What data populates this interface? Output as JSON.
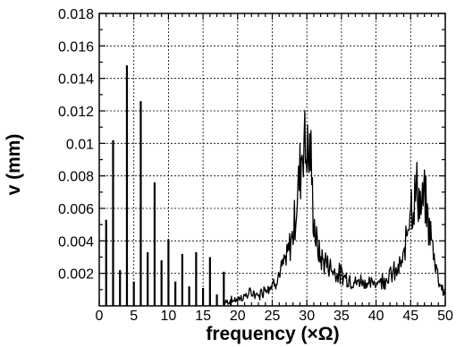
{
  "chart_data": {
    "type": "line",
    "title": "",
    "xlabel": "frequency (×Ω)",
    "ylabel": "v (mm)",
    "xlim": [
      0,
      50
    ],
    "ylim": [
      0,
      0.018
    ],
    "grid": true,
    "x_ticks": [
      0,
      5,
      10,
      15,
      20,
      25,
      30,
      35,
      40,
      45,
      50
    ],
    "x_tick_labels": [
      "0",
      "5",
      "10",
      "15",
      "20",
      "25",
      "30",
      "35",
      "40",
      "45",
      "50"
    ],
    "y_ticks": [
      0.002,
      0.004,
      0.006,
      0.008,
      0.01,
      0.012,
      0.014,
      0.016,
      0.018
    ],
    "y_tick_labels": [
      "0.002",
      "0.004",
      "0.006",
      "0.008",
      "0.01",
      "0.012",
      "0.014",
      "0.016",
      "0.018"
    ],
    "harmonics": {
      "x": [
        1,
        2,
        3,
        4,
        5,
        6,
        7,
        8,
        9,
        10,
        11,
        12,
        13,
        14,
        15,
        16,
        17,
        18,
        19
      ],
      "y": [
        0.0053,
        0.0102,
        0.0022,
        0.0148,
        0.0015,
        0.0126,
        0.0033,
        0.0076,
        0.0028,
        0.0041,
        0.0015,
        0.0032,
        0.0012,
        0.0033,
        0.0011,
        0.003,
        0.0007,
        0.0021,
        0.0004
      ]
    },
    "spectrum": {
      "x": [
        18,
        19,
        20,
        21,
        22,
        23,
        24,
        25,
        26,
        26.5,
        27,
        27.5,
        28,
        28.5,
        29,
        29.3,
        29.6,
        29.8,
        30,
        30.2,
        30.5,
        30.8,
        31,
        31.5,
        32,
        33,
        34,
        35,
        36,
        37,
        38,
        39,
        40,
        41,
        42,
        43,
        44,
        44.5,
        45,
        45.3,
        45.6,
        46,
        46.3,
        46.6,
        47,
        47.5,
        48,
        48.5,
        49,
        49.5,
        50
      ],
      "y": [
        0.0002,
        0.0003,
        0.0004,
        0.0006,
        0.0008,
        0.0006,
        0.0011,
        0.0013,
        0.0019,
        0.0024,
        0.0028,
        0.0036,
        0.0045,
        0.0062,
        0.0082,
        0.0098,
        0.0106,
        0.0094,
        0.0102,
        0.0088,
        0.0097,
        0.0068,
        0.0052,
        0.0036,
        0.0029,
        0.0026,
        0.0021,
        0.0019,
        0.0017,
        0.0014,
        0.0016,
        0.0013,
        0.0015,
        0.0016,
        0.0019,
        0.0021,
        0.0028,
        0.0048,
        0.0068,
        0.0062,
        0.0066,
        0.0074,
        0.0063,
        0.0059,
        0.0068,
        0.0052,
        0.0041,
        0.0029,
        0.0018,
        0.0011,
        0.0007
      ]
    }
  }
}
